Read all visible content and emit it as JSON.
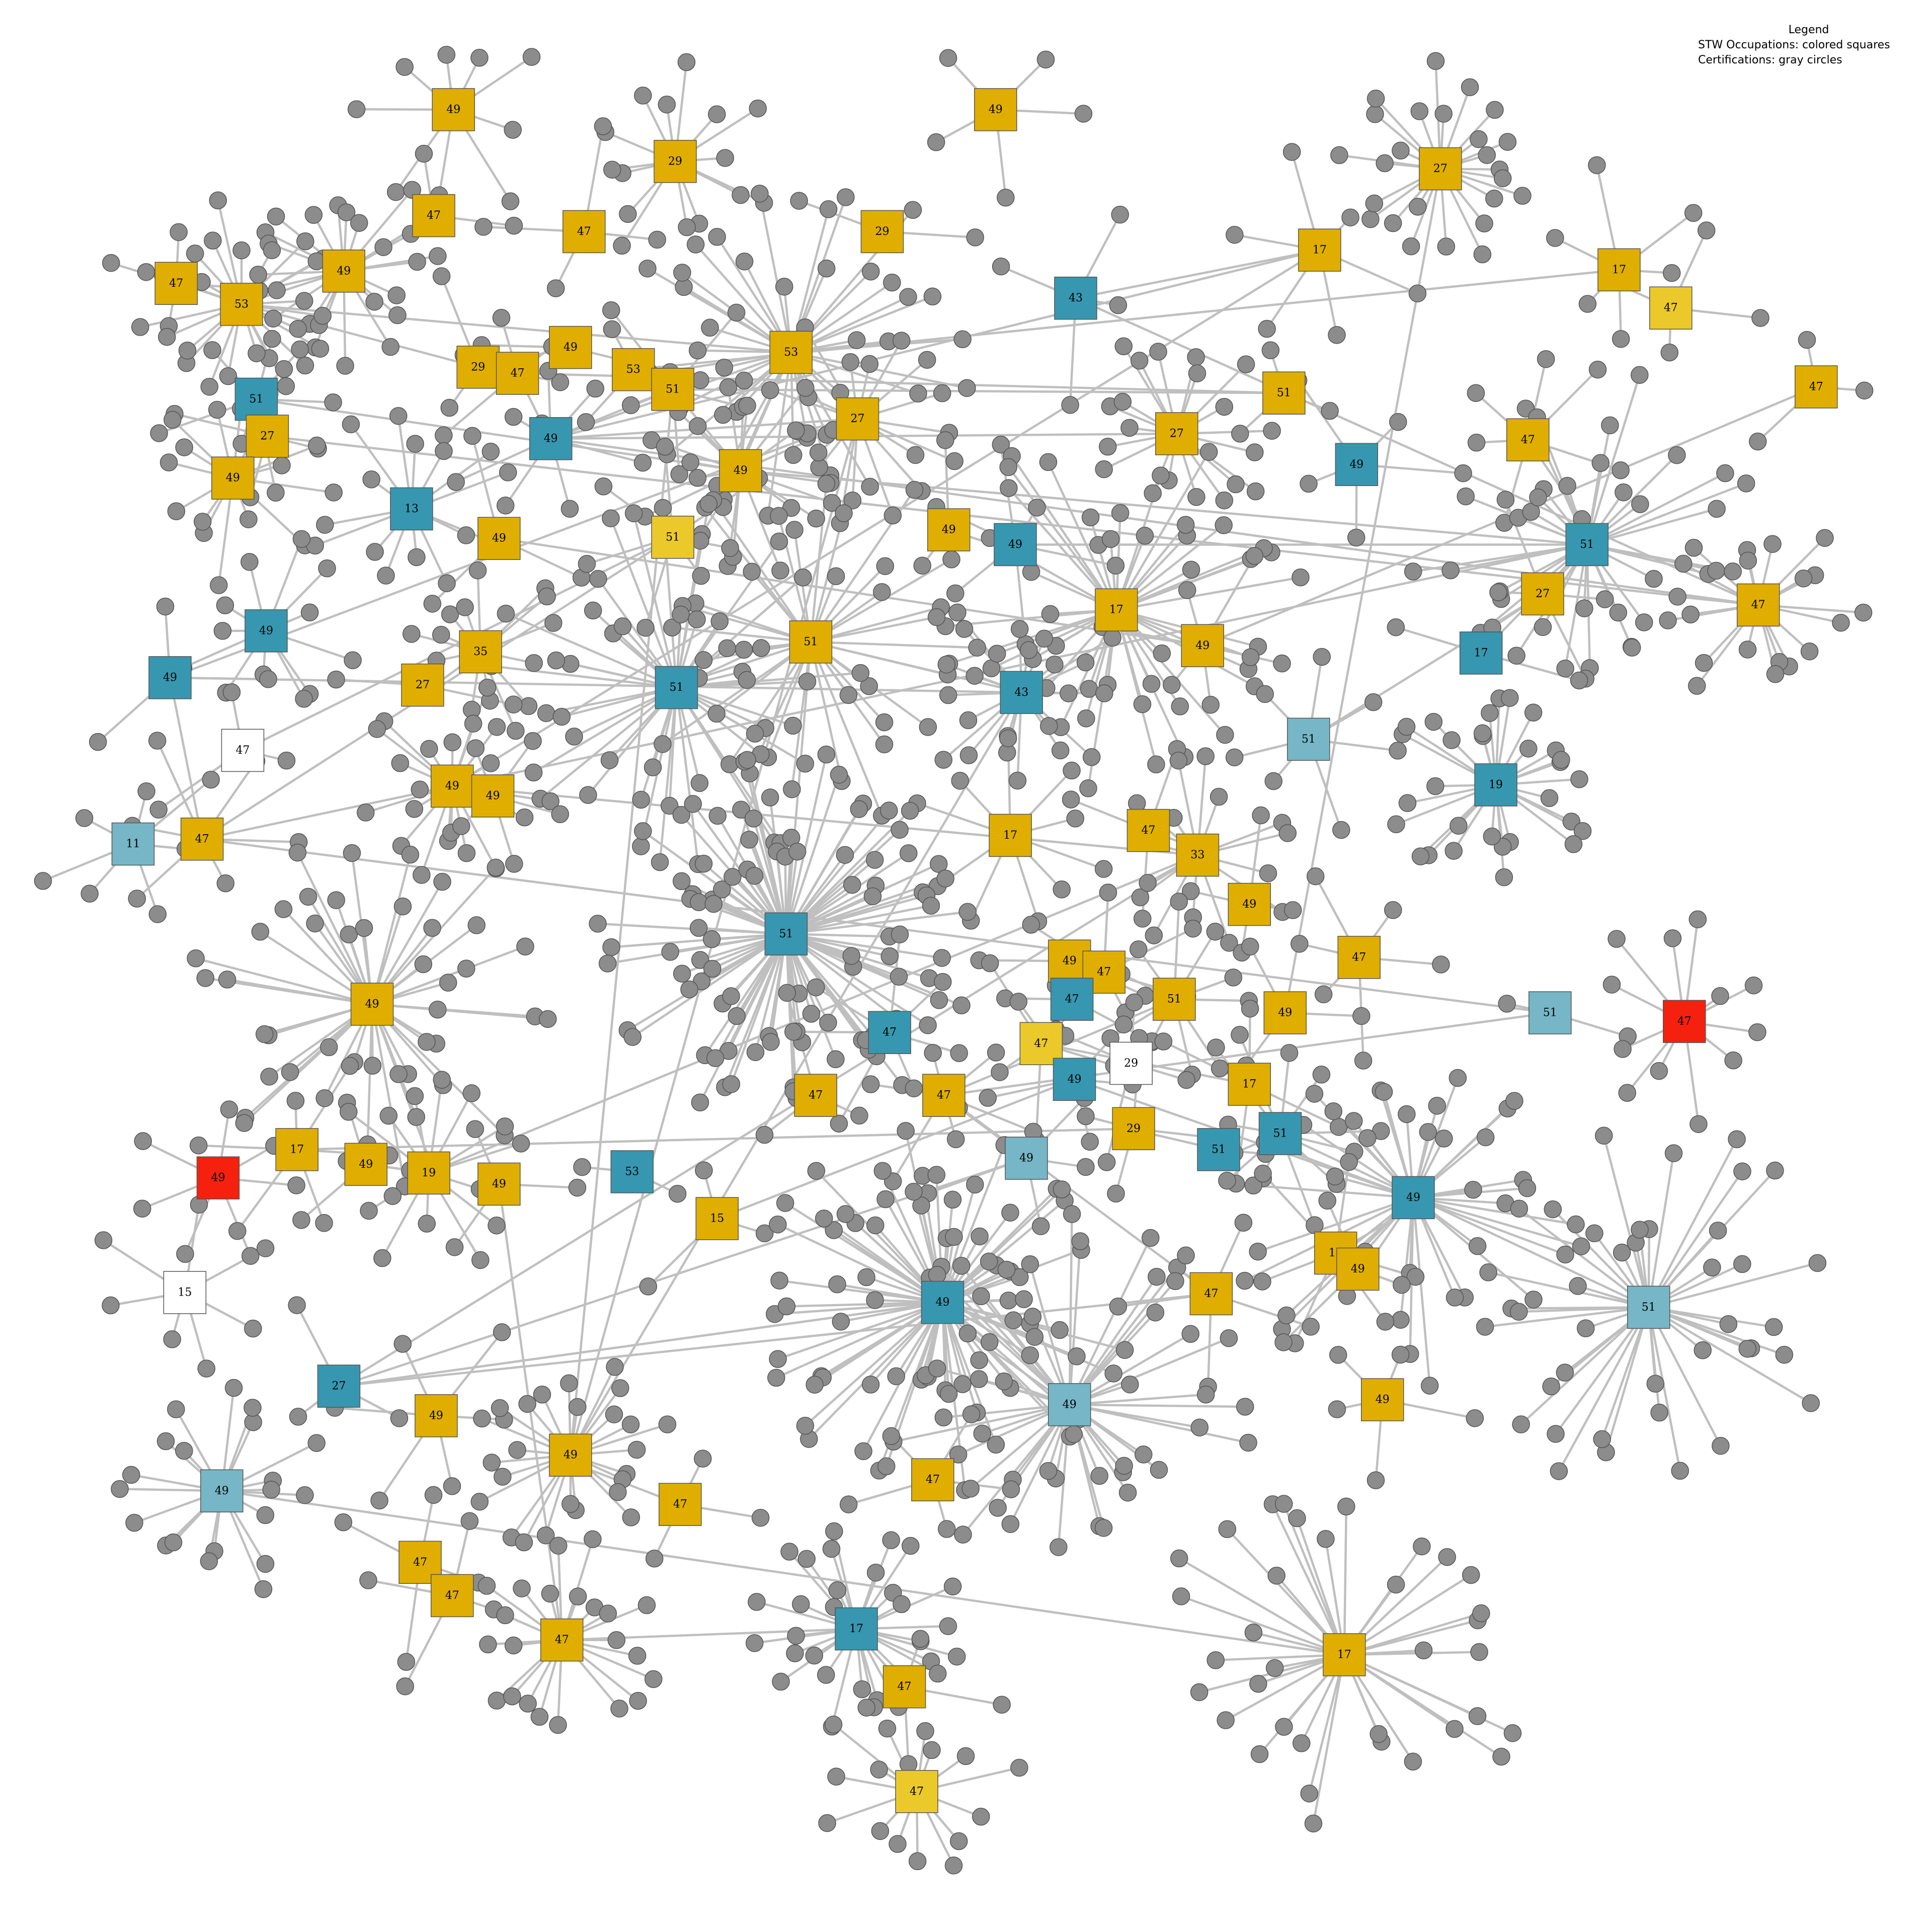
{
  "legend": {
    "title": "Legend",
    "line1": "STW Occupations: colored squares",
    "line2": "Certifications: gray circles"
  },
  "colors": {
    "gold": "#e0ae00",
    "yellow": "#ecc92b",
    "teal": "#3797b0",
    "light_teal": "#76b6c6",
    "red": "#f5200e",
    "white": "#ffffff",
    "certification": "#8c8c8c",
    "edge": "#bfbfbf"
  },
  "occupations": [
    {
      "label": "49",
      "color": "gold"
    },
    {
      "label": "29",
      "color": "gold"
    },
    {
      "label": "49",
      "color": "gold"
    },
    {
      "label": "27",
      "color": "gold"
    },
    {
      "label": "49",
      "color": "gold"
    },
    {
      "label": "47",
      "color": "gold"
    },
    {
      "label": "29",
      "color": "gold"
    },
    {
      "label": "47",
      "color": "gold"
    },
    {
      "label": "47",
      "color": "gold"
    },
    {
      "label": "53",
      "color": "gold"
    },
    {
      "label": "53",
      "color": "gold"
    },
    {
      "label": "43",
      "color": "teal"
    },
    {
      "label": "17",
      "color": "gold"
    },
    {
      "label": "17",
      "color": "gold"
    },
    {
      "label": "47",
      "color": "yellow"
    },
    {
      "label": "47",
      "color": "gold"
    },
    {
      "label": "29",
      "color": "gold"
    },
    {
      "label": "49",
      "color": "gold"
    },
    {
      "label": "47",
      "color": "gold"
    },
    {
      "label": "53",
      "color": "gold"
    },
    {
      "label": "51",
      "color": "teal"
    },
    {
      "label": "51",
      "color": "gold"
    },
    {
      "label": "27",
      "color": "gold"
    },
    {
      "label": "27",
      "color": "gold"
    },
    {
      "label": "51",
      "color": "gold"
    },
    {
      "label": "49",
      "color": "teal"
    },
    {
      "label": "27",
      "color": "gold"
    },
    {
      "label": "47",
      "color": "gold"
    },
    {
      "label": "49",
      "color": "gold"
    },
    {
      "label": "49",
      "color": "gold"
    },
    {
      "label": "49",
      "color": "teal"
    },
    {
      "label": "13",
      "color": "teal"
    },
    {
      "label": "49",
      "color": "gold"
    },
    {
      "label": "51",
      "color": "yellow"
    },
    {
      "label": "49",
      "color": "gold"
    },
    {
      "label": "49",
      "color": "teal"
    },
    {
      "label": "51",
      "color": "teal"
    },
    {
      "label": "49",
      "color": "teal"
    },
    {
      "label": "27",
      "color": "gold"
    },
    {
      "label": "47",
      "color": "gold"
    },
    {
      "label": "17",
      "color": "gold"
    },
    {
      "label": "51",
      "color": "gold"
    },
    {
      "label": "49",
      "color": "gold"
    },
    {
      "label": "49",
      "color": "teal"
    },
    {
      "label": "17",
      "color": "teal"
    },
    {
      "label": "35",
      "color": "gold"
    },
    {
      "label": "51",
      "color": "teal"
    },
    {
      "label": "27",
      "color": "gold"
    },
    {
      "label": "43",
      "color": "teal"
    },
    {
      "label": "51",
      "color": "light_teal"
    },
    {
      "label": "47",
      "color": "white"
    },
    {
      "label": "49",
      "color": "gold"
    },
    {
      "label": "49",
      "color": "gold"
    },
    {
      "label": "19",
      "color": "teal"
    },
    {
      "label": "11",
      "color": "light_teal"
    },
    {
      "label": "47",
      "color": "gold"
    },
    {
      "label": "17",
      "color": "gold"
    },
    {
      "label": "47",
      "color": "gold"
    },
    {
      "label": "33",
      "color": "gold"
    },
    {
      "label": "49",
      "color": "gold"
    },
    {
      "label": "51",
      "color": "teal"
    },
    {
      "label": "47",
      "color": "gold"
    },
    {
      "label": "49",
      "color": "gold"
    },
    {
      "label": "49",
      "color": "gold"
    },
    {
      "label": "47",
      "color": "gold"
    },
    {
      "label": "47",
      "color": "teal"
    },
    {
      "label": "51",
      "color": "gold"
    },
    {
      "label": "49",
      "color": "gold"
    },
    {
      "label": "51",
      "color": "light_teal"
    },
    {
      "label": "47",
      "color": "red"
    },
    {
      "label": "47",
      "color": "teal"
    },
    {
      "label": "47",
      "color": "yellow"
    },
    {
      "label": "49",
      "color": "teal"
    },
    {
      "label": "29",
      "color": "white"
    },
    {
      "label": "17",
      "color": "gold"
    },
    {
      "label": "47",
      "color": "gold"
    },
    {
      "label": "47",
      "color": "gold"
    },
    {
      "label": "29",
      "color": "gold"
    },
    {
      "label": "51",
      "color": "teal"
    },
    {
      "label": "49",
      "color": "light_teal"
    },
    {
      "label": "51",
      "color": "teal"
    },
    {
      "label": "17",
      "color": "gold"
    },
    {
      "label": "49",
      "color": "gold"
    },
    {
      "label": "19",
      "color": "gold"
    },
    {
      "label": "49",
      "color": "red"
    },
    {
      "label": "49",
      "color": "gold"
    },
    {
      "label": "53",
      "color": "teal"
    },
    {
      "label": "15",
      "color": "gold"
    },
    {
      "label": "49",
      "color": "teal"
    },
    {
      "label": "17",
      "color": "gold"
    },
    {
      "label": "49",
      "color": "gold"
    },
    {
      "label": "47",
      "color": "gold"
    },
    {
      "label": "49",
      "color": "teal"
    },
    {
      "label": "51",
      "color": "light_teal"
    },
    {
      "label": "15",
      "color": "white"
    },
    {
      "label": "49",
      "color": "light_teal"
    },
    {
      "label": "27",
      "color": "teal"
    },
    {
      "label": "49",
      "color": "gold"
    },
    {
      "label": "49",
      "color": "gold"
    },
    {
      "label": "49",
      "color": "gold"
    },
    {
      "label": "49",
      "color": "light_teal"
    },
    {
      "label": "47",
      "color": "gold"
    },
    {
      "label": "47",
      "color": "gold"
    },
    {
      "label": "47",
      "color": "gold"
    },
    {
      "label": "47",
      "color": "gold"
    },
    {
      "label": "47",
      "color": "gold"
    },
    {
      "label": "17",
      "color": "teal"
    },
    {
      "label": "47",
      "color": "gold"
    },
    {
      "label": "17",
      "color": "gold"
    },
    {
      "label": "47",
      "color": "yellow"
    }
  ],
  "links": [
    [
      4,
      8
    ],
    [
      4,
      9
    ],
    [
      9,
      10
    ],
    [
      11,
      12
    ],
    [
      13,
      19
    ],
    [
      16,
      9
    ],
    [
      16,
      17
    ],
    [
      24,
      18
    ],
    [
      25,
      39
    ],
    [
      25,
      12
    ],
    [
      25,
      23
    ],
    [
      25,
      26
    ],
    [
      25,
      21
    ],
    [
      10,
      25
    ],
    [
      24,
      21
    ],
    [
      21,
      29
    ],
    [
      29,
      36
    ],
    [
      36,
      44
    ],
    [
      33,
      50
    ],
    [
      33,
      55
    ],
    [
      55,
      43
    ],
    [
      36,
      51
    ],
    [
      51,
      55
    ],
    [
      52,
      51
    ],
    [
      68,
      55
    ],
    [
      68,
      76
    ],
    [
      66,
      76
    ],
    [
      71,
      74
    ],
    [
      76,
      91
    ],
    [
      91,
      96
    ],
    [
      96,
      92
    ],
    [
      96,
      79
    ],
    [
      87,
      72
    ],
    [
      78,
      93
    ],
    [
      85,
      105
    ],
    [
      105,
      106
    ],
    [
      100,
      108
    ],
    [
      38,
      49
    ],
    [
      12,
      51
    ],
    [
      23,
      99
    ],
    [
      35,
      36
    ],
    [
      39,
      11
    ],
    [
      39,
      22
    ],
    [
      43,
      23
    ],
    [
      43,
      48
    ],
    [
      48,
      99
    ],
    [
      58,
      83
    ],
    [
      42,
      15
    ],
    [
      42,
      32
    ],
    [
      20,
      29
    ],
    [
      58,
      96
    ],
    [
      3,
      67
    ],
    [
      88,
      72
    ],
    [
      21,
      99
    ],
    [
      81,
      77
    ],
    [
      41,
      48
    ],
    [
      60,
      41
    ],
    [
      58,
      51
    ]
  ]
}
